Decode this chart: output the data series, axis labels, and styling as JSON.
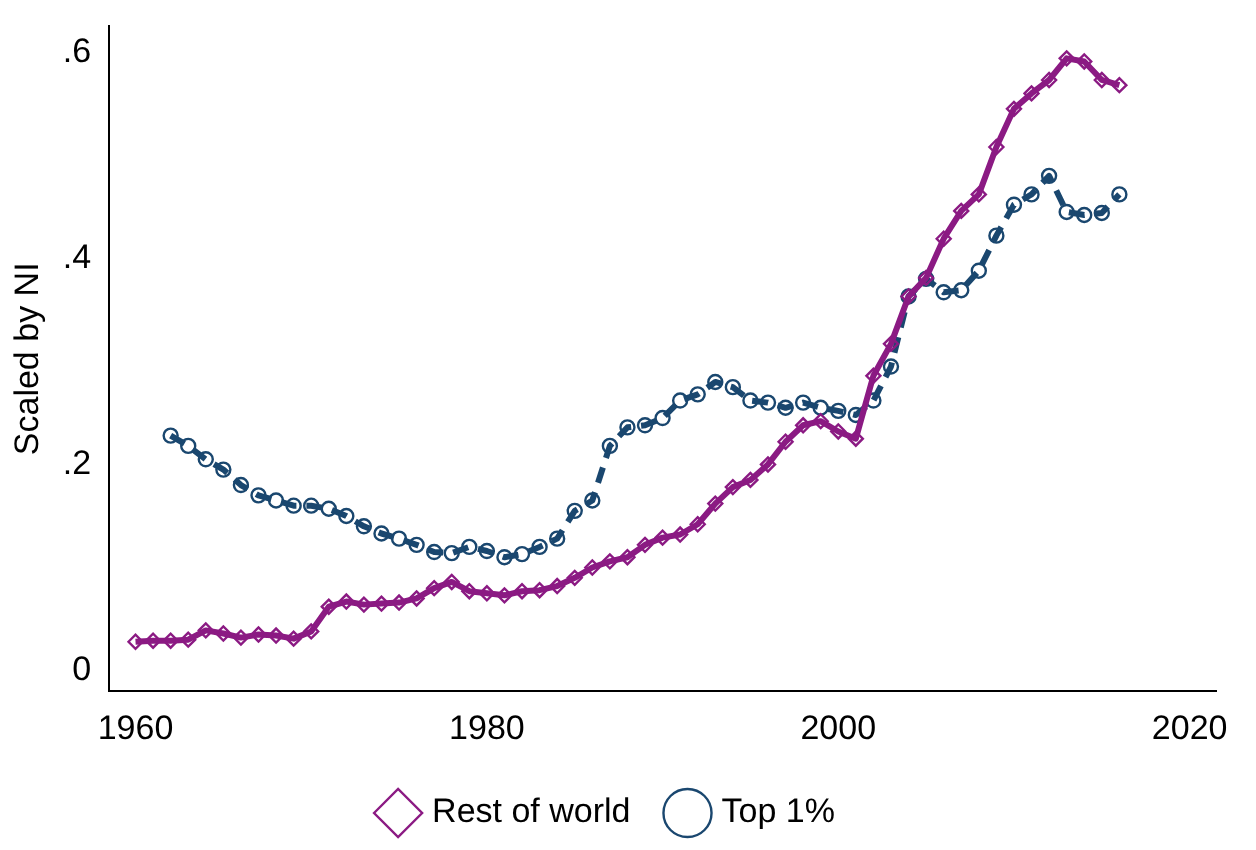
{
  "chart_data": {
    "type": "line",
    "ylabel": "Scaled by NI",
    "x": [
      1960,
      1961,
      1962,
      1963,
      1964,
      1965,
      1966,
      1967,
      1968,
      1969,
      1970,
      1971,
      1972,
      1973,
      1974,
      1975,
      1976,
      1977,
      1978,
      1979,
      1980,
      1981,
      1982,
      1983,
      1984,
      1985,
      1986,
      1987,
      1988,
      1989,
      1990,
      1991,
      1992,
      1993,
      1994,
      1995,
      1996,
      1997,
      1998,
      1999,
      2000,
      2001,
      2002,
      2003,
      2004,
      2005,
      2006,
      2007,
      2008,
      2009,
      2010,
      2011,
      2012,
      2013,
      2014,
      2015,
      2016
    ],
    "series": [
      {
        "name": "Rest of world",
        "color": "#8b1a83",
        "marker": "diamond",
        "line_style": "solid",
        "values": [
          0.028,
          0.029,
          0.029,
          0.03,
          0.039,
          0.036,
          0.032,
          0.035,
          0.034,
          0.031,
          0.038,
          0.062,
          0.067,
          0.064,
          0.065,
          0.066,
          0.07,
          0.08,
          0.086,
          0.077,
          0.075,
          0.073,
          0.077,
          0.078,
          0.082,
          0.09,
          0.1,
          0.106,
          0.11,
          0.122,
          0.129,
          0.132,
          0.142,
          0.162,
          0.178,
          0.185,
          0.2,
          0.222,
          0.238,
          0.242,
          0.232,
          0.225,
          0.286,
          0.317,
          0.363,
          0.381,
          0.419,
          0.446,
          0.462,
          0.508,
          0.545,
          0.56,
          0.573,
          0.594,
          0.591,
          0.573,
          0.568
        ]
      },
      {
        "name": "Top 1%",
        "color": "#1a476f",
        "marker": "circle",
        "line_style": "dashed",
        "values": [
          null,
          null,
          0.228,
          0.218,
          0.205,
          0.195,
          0.18,
          0.17,
          0.165,
          0.16,
          0.16,
          0.157,
          0.15,
          0.14,
          0.133,
          0.128,
          0.122,
          0.115,
          0.114,
          0.12,
          0.116,
          0.11,
          0.113,
          0.12,
          0.128,
          0.155,
          0.165,
          0.218,
          0.236,
          0.238,
          0.245,
          0.262,
          0.268,
          0.28,
          0.275,
          0.262,
          0.26,
          0.255,
          0.26,
          0.255,
          0.252,
          0.248,
          0.262,
          0.295,
          0.363,
          0.38,
          0.367,
          0.369,
          0.388,
          0.422,
          0.452,
          0.462,
          0.48,
          0.445,
          0.442,
          0.444,
          0.462
        ]
      }
    ],
    "xlim": [
      1958.5,
      2021.5
    ],
    "xticks": [
      1960,
      1980,
      2000,
      2020
    ],
    "ylim": [
      -0.02,
      0.625
    ],
    "yticks": [
      {
        "value": 0,
        "label": "0"
      },
      {
        "value": 0.2,
        "label": ".2"
      },
      {
        "value": 0.4,
        "label": ".4"
      },
      {
        "value": 0.6,
        "label": ".6"
      }
    ],
    "grid": false,
    "legend": "bottom"
  }
}
